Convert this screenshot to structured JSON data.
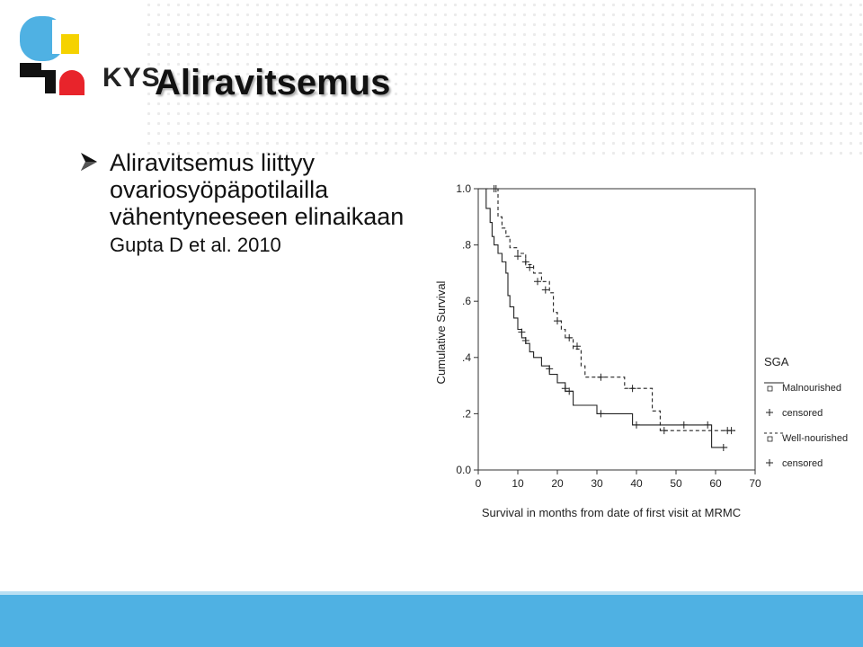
{
  "slide": {
    "logo_text": "KYS",
    "title": "Aliravitsemus",
    "bullet_main": "Aliravitsemus liittyy ovariosyöpäpotilailla vähentyneeseen elinaikaan",
    "bullet_cite": "Gupta D et al. 2010",
    "bullet_icon": "arrow-bullet-icon"
  },
  "colors": {
    "footer": "#4fb1e3",
    "logo_blue": "#4fb1e3",
    "logo_yellow": "#f5d200",
    "logo_red": "#e8242b",
    "logo_black": "#111111"
  },
  "chart_data": {
    "type": "line",
    "subtype": "kaplan-meier step",
    "xlabel": "Survival in months from date of first visit at MRMC",
    "ylabel": "Cumulative Survival",
    "xlim": [
      0,
      70
    ],
    "ylim": [
      0,
      1.0
    ],
    "x_ticks": [
      "0",
      "10",
      "20",
      "30",
      "40",
      "50",
      "60",
      "70"
    ],
    "y_ticks": [
      "0.0",
      ".2",
      ".4",
      ".6",
      ".8",
      "1.0"
    ],
    "grid": false,
    "legend_title": "SGA",
    "legend_position": "right",
    "series": [
      {
        "name": "Malnourished",
        "style": "solid",
        "points": [
          [
            0,
            1.0
          ],
          [
            2,
            1.0
          ],
          [
            2,
            0.93
          ],
          [
            3,
            0.88
          ],
          [
            3.5,
            0.83
          ],
          [
            4,
            0.8
          ],
          [
            5,
            0.77
          ],
          [
            6,
            0.74
          ],
          [
            7,
            0.7
          ],
          [
            7.5,
            0.62
          ],
          [
            8,
            0.58
          ],
          [
            9,
            0.54
          ],
          [
            10,
            0.5
          ],
          [
            11,
            0.47
          ],
          [
            12,
            0.45
          ],
          [
            13,
            0.42
          ],
          [
            14,
            0.4
          ],
          [
            16,
            0.37
          ],
          [
            18,
            0.34
          ],
          [
            20,
            0.31
          ],
          [
            22,
            0.28
          ],
          [
            24,
            0.23
          ],
          [
            30,
            0.2
          ],
          [
            39,
            0.16
          ],
          [
            59,
            0.16
          ],
          [
            59,
            0.08
          ],
          [
            63,
            0.08
          ]
        ],
        "censored": [
          [
            11,
            0.49
          ],
          [
            12,
            0.46
          ],
          [
            18,
            0.36
          ],
          [
            22,
            0.29
          ],
          [
            23,
            0.28
          ],
          [
            31,
            0.2
          ],
          [
            40,
            0.16
          ],
          [
            52,
            0.16
          ],
          [
            58,
            0.16
          ],
          [
            62,
            0.08
          ]
        ]
      },
      {
        "name": "Well-nourished",
        "style": "dashed",
        "points": [
          [
            0,
            1.0
          ],
          [
            5,
            1.0
          ],
          [
            5,
            0.9
          ],
          [
            6,
            0.86
          ],
          [
            7,
            0.83
          ],
          [
            8,
            0.79
          ],
          [
            10,
            0.77
          ],
          [
            12,
            0.73
          ],
          [
            14,
            0.7
          ],
          [
            16,
            0.67
          ],
          [
            18,
            0.63
          ],
          [
            19,
            0.56
          ],
          [
            20,
            0.53
          ],
          [
            21,
            0.5
          ],
          [
            22,
            0.47
          ],
          [
            24,
            0.43
          ],
          [
            26,
            0.37
          ],
          [
            27,
            0.33
          ],
          [
            37,
            0.33
          ],
          [
            37,
            0.29
          ],
          [
            44,
            0.29
          ],
          [
            44,
            0.21
          ],
          [
            46,
            0.17
          ],
          [
            46,
            0.14
          ],
          [
            65,
            0.14
          ]
        ],
        "censored": [
          [
            4,
            1.0
          ],
          [
            4.5,
            1.0
          ],
          [
            10,
            0.76
          ],
          [
            12,
            0.74
          ],
          [
            13,
            0.72
          ],
          [
            15,
            0.67
          ],
          [
            17,
            0.64
          ],
          [
            20,
            0.53
          ],
          [
            23,
            0.47
          ],
          [
            25,
            0.44
          ],
          [
            31,
            0.33
          ],
          [
            39,
            0.29
          ],
          [
            47,
            0.14
          ],
          [
            63,
            0.14
          ],
          [
            64,
            0.14
          ]
        ]
      }
    ],
    "legend": [
      {
        "label": "Malnourished",
        "marker": "line-solid"
      },
      {
        "label": "censored",
        "marker": "plus"
      },
      {
        "label": "Well-nourished",
        "marker": "line-dashed"
      },
      {
        "label": "censored",
        "marker": "plus"
      }
    ]
  }
}
